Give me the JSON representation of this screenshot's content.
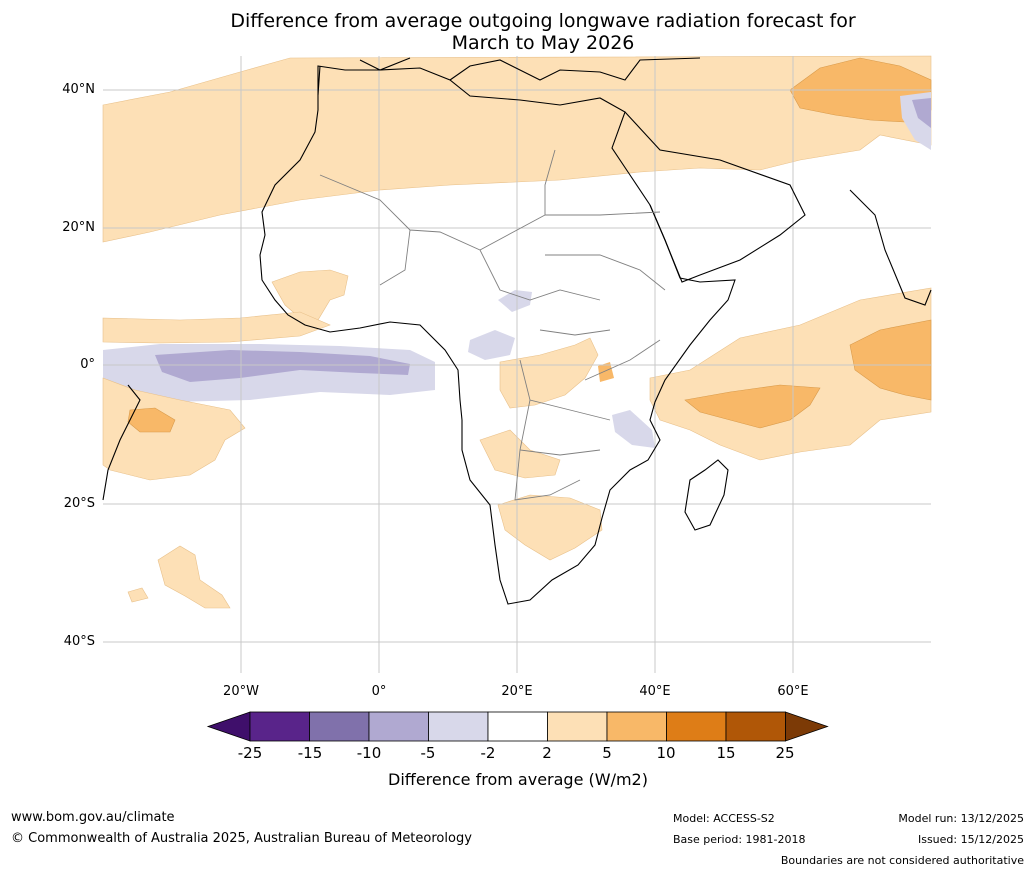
{
  "title_line1": "Difference from average outgoing longwave radiation forecast for",
  "title_line2": "March to May 2026",
  "lat_labels": [
    "40°N",
    "20°N",
    "0°",
    "20°S",
    "40°S"
  ],
  "lon_labels": [
    "20°W",
    "0°",
    "20°E",
    "40°E",
    "60°E"
  ],
  "colorbar": {
    "ticks": [
      "-25",
      "-15",
      "-10",
      "-5",
      "-2",
      "2",
      "5",
      "10",
      "15",
      "25"
    ],
    "colors": [
      "#3f0f6b",
      "#59248a",
      "#8071ab",
      "#b0a9d1",
      "#d8d8ea",
      "#ffffff",
      "#fde0b6",
      "#f8b868",
      "#de7d17",
      "#b05707",
      "#7c3a06"
    ],
    "title": "Difference from average (W/m2)"
  },
  "footer": {
    "url": "www.bom.gov.au/climate",
    "copyright": "© Commonwealth of Australia 2025, Australian Bureau of Meteorology",
    "model": "Model: ACCESS-S2",
    "base_period": "Base period: 1981-2018",
    "model_run": "Model run: 13/12/2025",
    "issued": "Issued: 15/12/2025",
    "disclaimer": "Boundaries are not considered authoritative"
  }
}
